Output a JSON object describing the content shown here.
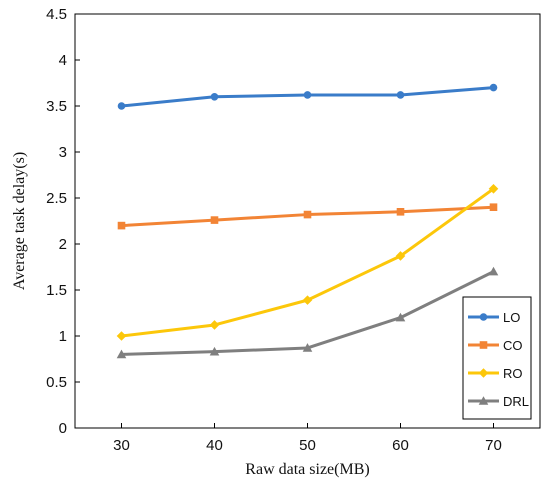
{
  "chart_data": {
    "type": "line",
    "title": "",
    "xlabel": "Raw data size(MB)",
    "ylabel": "Average task delay(s)",
    "x": [
      30,
      40,
      50,
      60,
      70
    ],
    "x_tick_labels": [
      "30",
      "40",
      "50",
      "60",
      "70"
    ],
    "xlim": [
      25,
      75
    ],
    "ylim": [
      0,
      4.5
    ],
    "y_ticks": [
      0,
      0.5,
      1,
      1.5,
      2,
      2.5,
      3,
      3.5,
      4,
      4.5
    ],
    "y_tick_labels": [
      "0",
      "0.5",
      "1",
      "1.5",
      "2",
      "2.5",
      "3",
      "3.5",
      "4",
      "4.5"
    ],
    "grid": false,
    "legend_position": "bottom-right",
    "series": [
      {
        "name": "LO",
        "values": [
          3.5,
          3.6,
          3.62,
          3.62,
          3.7
        ],
        "color": "#3a7cc9",
        "marker": "circle"
      },
      {
        "name": "CO",
        "values": [
          2.2,
          2.26,
          2.32,
          2.35,
          2.4
        ],
        "color": "#f28435",
        "marker": "square"
      },
      {
        "name": "RO",
        "values": [
          1.0,
          1.12,
          1.39,
          1.87,
          2.6
        ],
        "color": "#fcc70a",
        "marker": "diamond"
      },
      {
        "name": "DRL",
        "values": [
          0.8,
          0.83,
          0.87,
          1.2,
          1.7
        ],
        "color": "#7f7f7f",
        "marker": "triangle"
      }
    ]
  }
}
